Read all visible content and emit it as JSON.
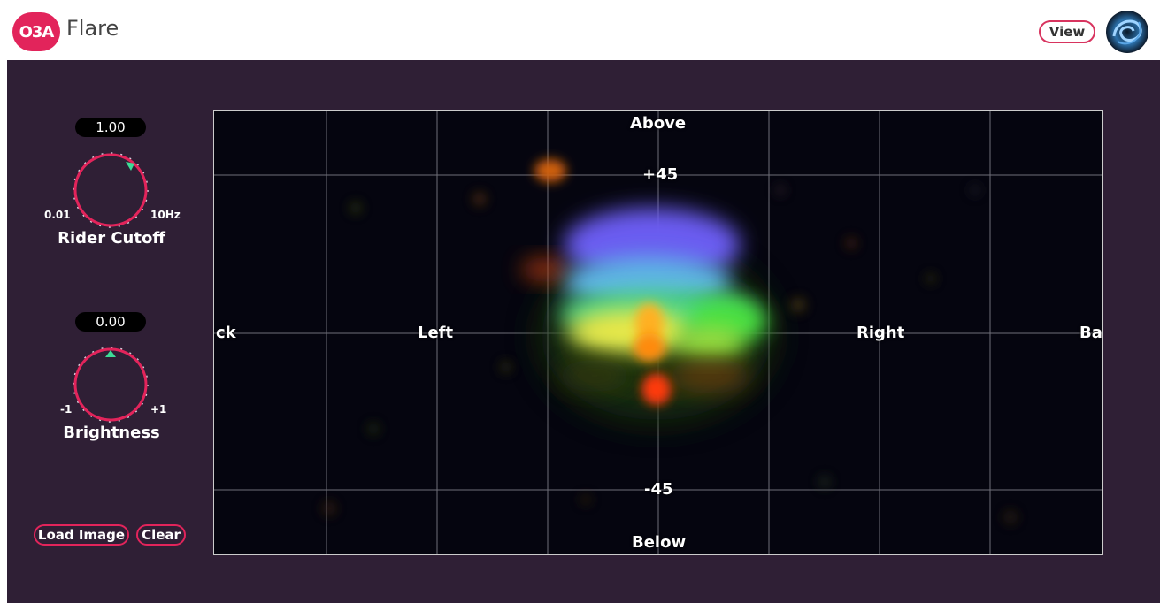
{
  "header": {
    "logo_text": "O3A",
    "title": "Flare",
    "view_label": "View",
    "brand_icon": "swirl-logo-icon"
  },
  "controls": {
    "rider": {
      "value": "1.00",
      "min": "0.01",
      "max": "10Hz",
      "label": "Rider Cutoff",
      "level": 0.5
    },
    "brightness": {
      "value": "0.00",
      "min": "-1",
      "max": "+1",
      "label": "Brightness",
      "level": 0.5
    },
    "load_image_label": "Load Image",
    "clear_label": "Clear"
  },
  "scope": {
    "above": "Above",
    "below": "Below",
    "plus45": "+45",
    "minus45": "-45",
    "left": "Left",
    "right": "Right",
    "back_left": "ck",
    "back_right": "Ba"
  },
  "colors": {
    "accent": "#e2245b",
    "panel_bg": "#2f1f35",
    "knob_indicator": "#3ddc97"
  }
}
